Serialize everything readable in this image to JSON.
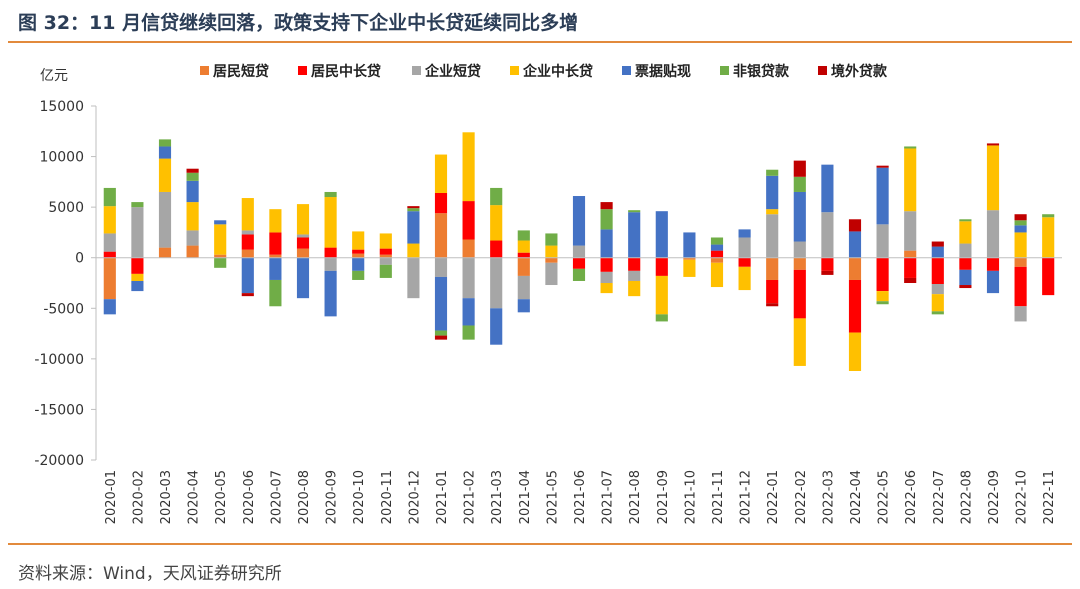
{
  "title": "图 32：11 月信贷继续回落，政策支持下企业中长贷延续同比多增",
  "source": "资料来源：Wind，天风证券研究所",
  "chart_data": {
    "type": "bar",
    "stacked": true,
    "ylabel": "亿元",
    "ylim": [
      -20000,
      15000
    ],
    "yticks": [
      15000,
      10000,
      5000,
      0,
      -5000,
      -10000,
      -15000,
      -20000
    ],
    "grid": false,
    "legend_position": "top",
    "categories": [
      "2020-01",
      "2020-02",
      "2020-03",
      "2020-04",
      "2020-05",
      "2020-06",
      "2020-07",
      "2020-08",
      "2020-09",
      "2020-10",
      "2020-11",
      "2020-12",
      "2021-01",
      "2021-02",
      "2021-03",
      "2021-04",
      "2021-05",
      "2021-06",
      "2021-07",
      "2021-08",
      "2021-09",
      "2021-10",
      "2021-11",
      "2021-12",
      "2022-01",
      "2022-02",
      "2022-03",
      "2022-04",
      "2022-05",
      "2022-06",
      "2022-07",
      "2022-08",
      "2022-09",
      "2022-10",
      "2022-11"
    ],
    "series": [
      {
        "name": "居民短贷",
        "color": "#ed7d31",
        "values": [
          -4100,
          0,
          1000,
          1200,
          300,
          800,
          300,
          900,
          0,
          400,
          300,
          0,
          4400,
          1800,
          0,
          -1800,
          -500,
          0,
          0,
          0,
          0,
          -200,
          -500,
          0,
          -2200,
          -1200,
          0,
          -2200,
          0,
          700,
          0,
          0,
          0,
          -900,
          0
        ]
      },
      {
        "name": "居民中长贷",
        "color": "#ff0000",
        "values": [
          600,
          -1600,
          0,
          0,
          0,
          1500,
          2200,
          1100,
          1000,
          400,
          600,
          0,
          2000,
          3800,
          1700,
          500,
          0,
          -1100,
          -1400,
          -1300,
          -1800,
          0,
          700,
          -900,
          -2300,
          -4800,
          -1300,
          -5200,
          -3300,
          -2000,
          -2600,
          -1200,
          -1300,
          -3900,
          -3700
        ]
      },
      {
        "name": "企业短贷",
        "color": "#a6a6a6",
        "values": [
          1800,
          5000,
          5500,
          1500,
          0,
          400,
          0,
          300,
          -1300,
          0,
          -700,
          -4000,
          -1900,
          -4000,
          -5000,
          -2300,
          -2200,
          1200,
          -1100,
          -1000,
          0,
          0,
          0,
          2000,
          4300,
          1600,
          4500,
          0,
          3300,
          3900,
          -1000,
          1400,
          4700,
          -1500,
          0
        ]
      },
      {
        "name": "企业中长贷",
        "color": "#ffc000",
        "values": [
          2700,
          -700,
          3300,
          2800,
          3000,
          3200,
          2300,
          3000,
          5000,
          1800,
          1500,
          1400,
          3800,
          6800,
          3500,
          1200,
          1200,
          0,
          -1000,
          -1500,
          -3800,
          -1700,
          -2400,
          -2300,
          500,
          -4700,
          0,
          -3800,
          -1000,
          6200,
          -1700,
          2200,
          6400,
          2500,
          4000
        ]
      },
      {
        "name": "票据贴现",
        "color": "#4472c4",
        "values": [
          -1500,
          -1000,
          1200,
          2100,
          400,
          -3500,
          -2200,
          -4000,
          -4500,
          -1300,
          0,
          3200,
          -5300,
          -2700,
          -3600,
          -1300,
          0,
          4900,
          2800,
          4500,
          4600,
          2500,
          600,
          800,
          3300,
          4900,
          4700,
          2600,
          5600,
          0,
          1100,
          -1500,
          -2200,
          700,
          0
        ]
      },
      {
        "name": "非银贷款",
        "color": "#70ad47",
        "values": [
          1800,
          500,
          700,
          800,
          -1000,
          0,
          -2600,
          0,
          500,
          -900,
          -1300,
          300,
          -500,
          -1400,
          1700,
          1000,
          1200,
          -1200,
          2000,
          200,
          -700,
          0,
          700,
          0,
          600,
          1500,
          0,
          0,
          -300,
          200,
          -300,
          200,
          0,
          500,
          300
        ]
      },
      {
        "name": "境外贷款",
        "color": "#c00000",
        "values": [
          0,
          0,
          0,
          400,
          0,
          -300,
          0,
          0,
          0,
          0,
          0,
          200,
          -400,
          0,
          0,
          0,
          0,
          0,
          700,
          0,
          0,
          0,
          0,
          0,
          -300,
          1600,
          -400,
          1200,
          200,
          -500,
          500,
          -300,
          200,
          600,
          0
        ]
      }
    ]
  }
}
